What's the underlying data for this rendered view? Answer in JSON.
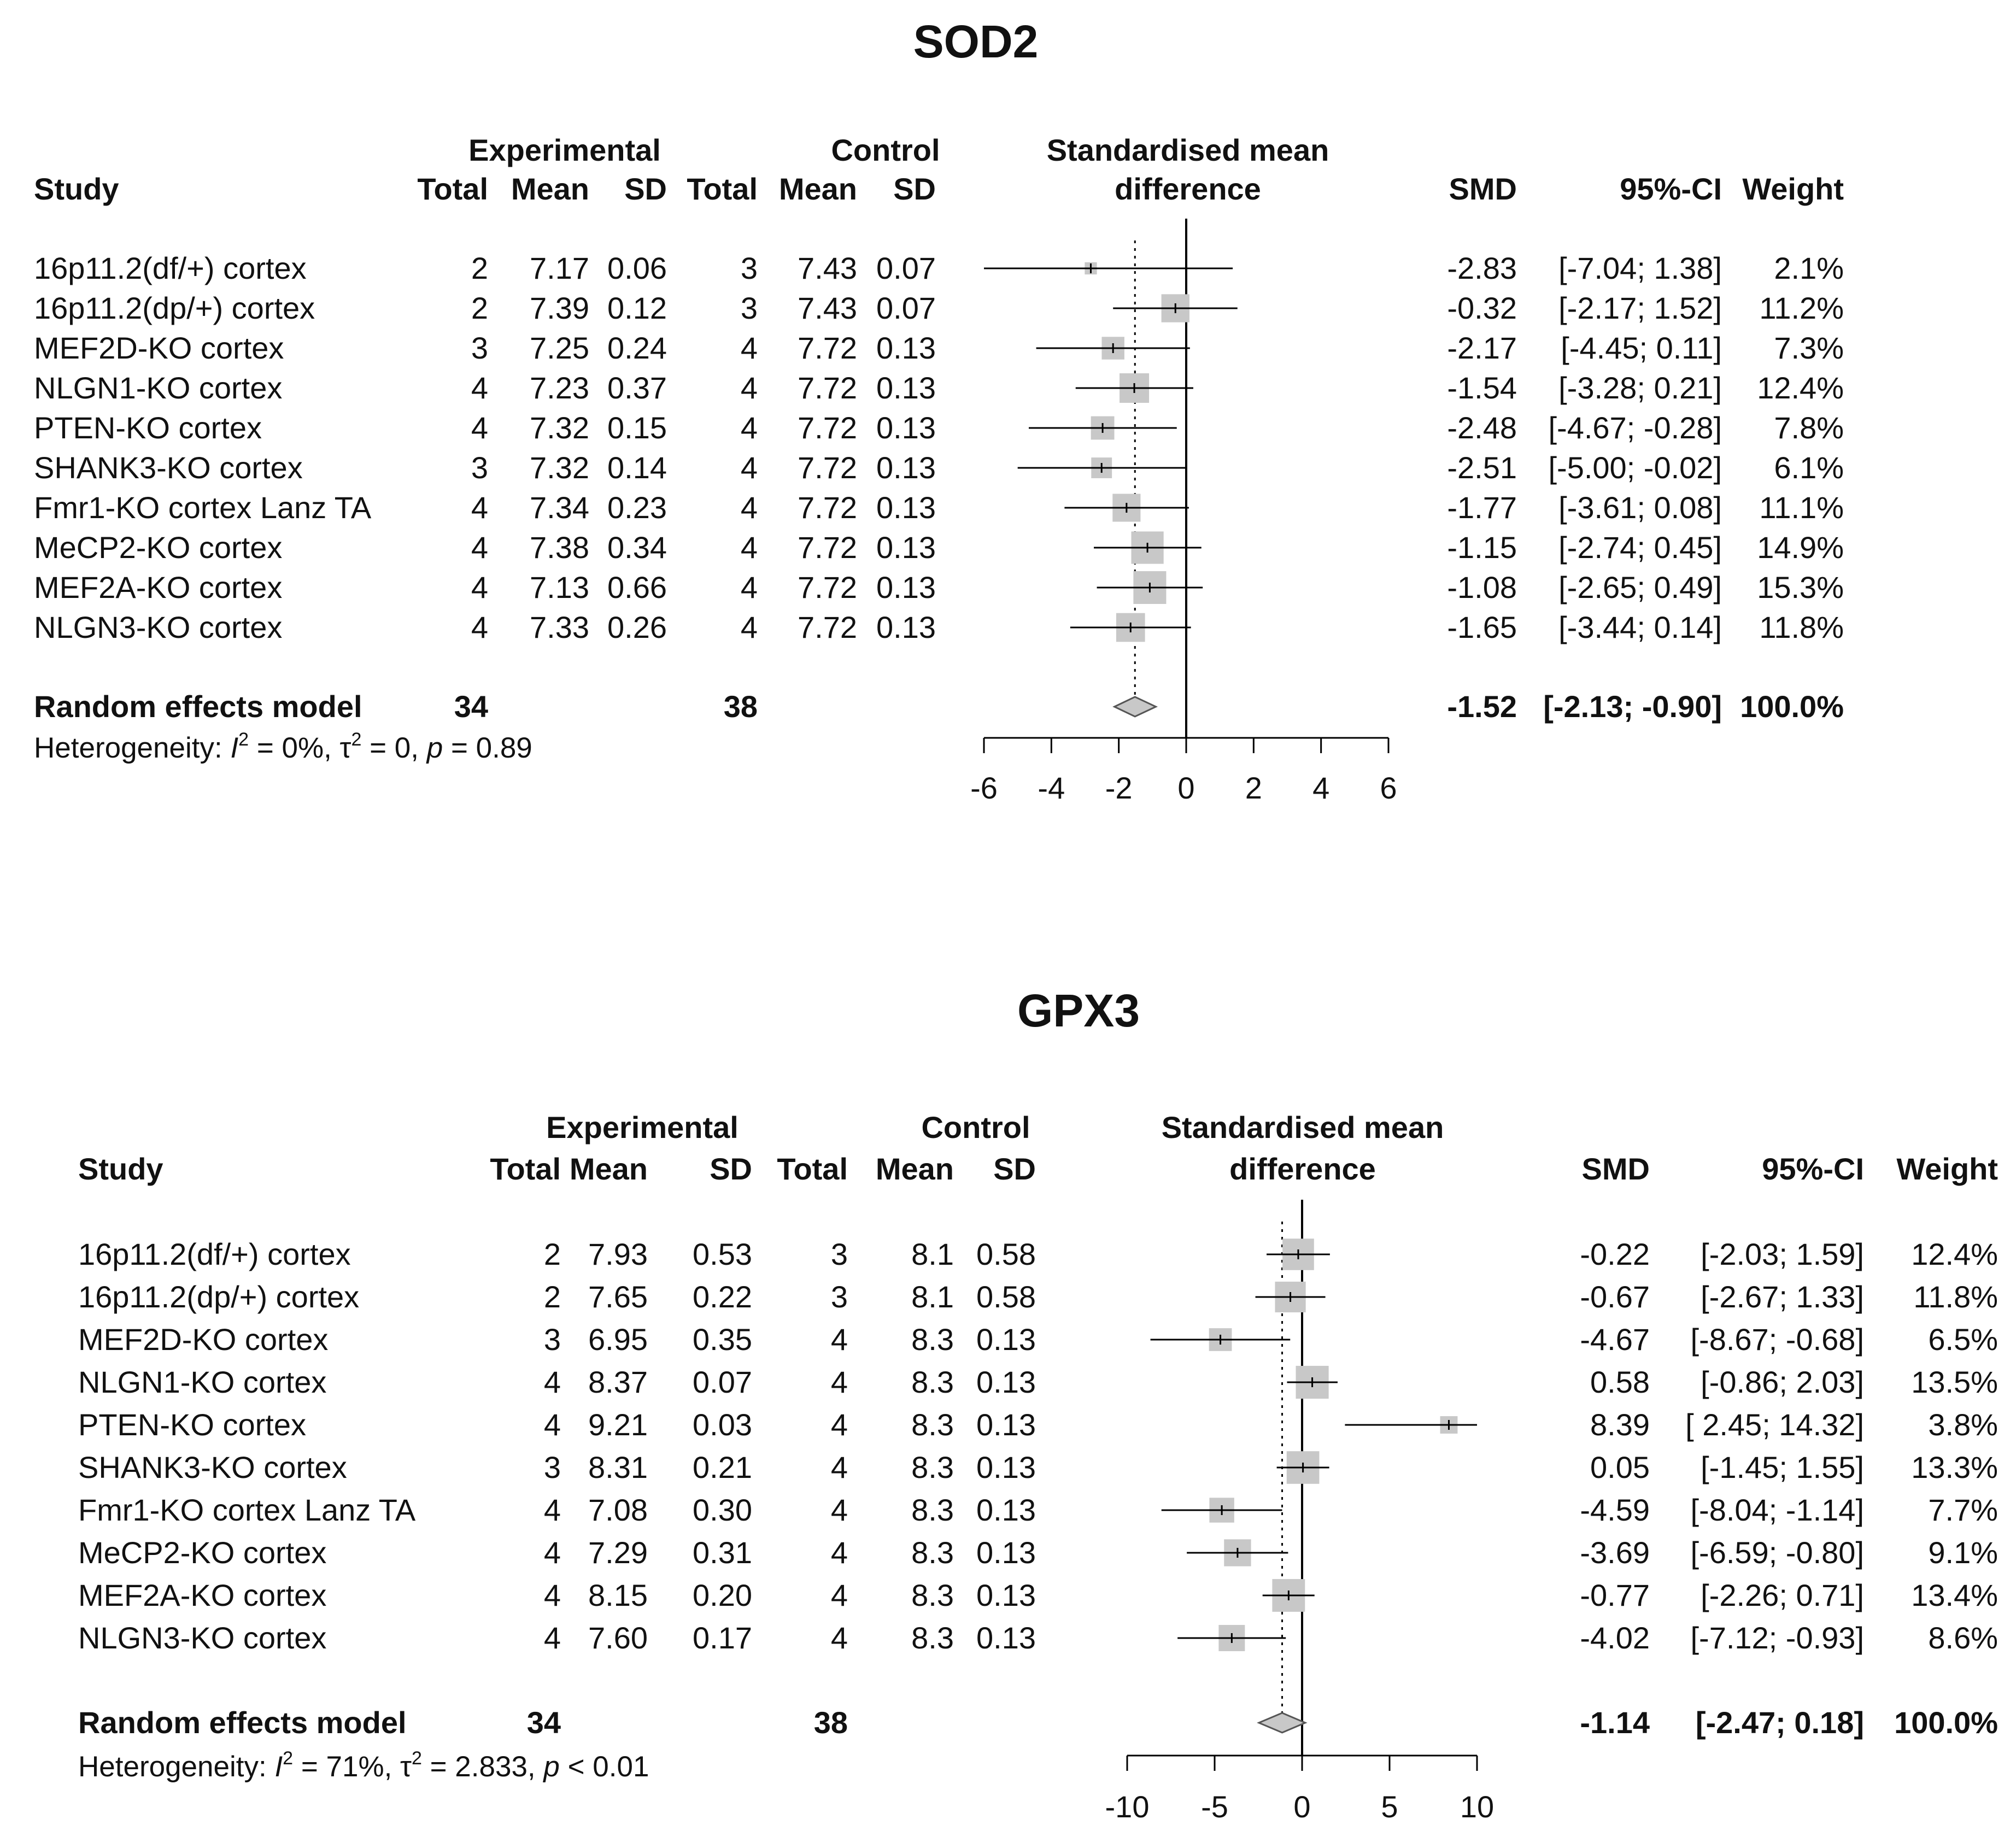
{
  "chart_data": [
    {
      "type": "forest",
      "title": "SOD2",
      "headers": {
        "study": "Study",
        "experimental": "Experimental",
        "control": "Control",
        "total": "Total",
        "mean": "Mean",
        "sd": "SD",
        "effect_line1": "Standardised mean",
        "effect_line2": "difference",
        "smd": "SMD",
        "ci": "95%-CI",
        "weight": "Weight"
      },
      "studies": [
        {
          "name": "16p11.2(df/+) cortex",
          "exp_total": "2",
          "exp_mean": "7.17",
          "exp_sd": "0.06",
          "ctl_total": "3",
          "ctl_mean": "7.43",
          "ctl_sd": "0.07",
          "smd": "-2.83",
          "ci": "[-7.04; 1.38]",
          "weight": "2.1%",
          "smd_value": -2.83,
          "ci_low": -7.04,
          "ci_high": 1.38,
          "weight_value": 2.1
        },
        {
          "name": "16p11.2(dp/+) cortex",
          "exp_total": "2",
          "exp_mean": "7.39",
          "exp_sd": "0.12",
          "ctl_total": "3",
          "ctl_mean": "7.43",
          "ctl_sd": "0.07",
          "smd": "-0.32",
          "ci": "[-2.17; 1.52]",
          "weight": "11.2%",
          "smd_value": -0.32,
          "ci_low": -2.17,
          "ci_high": 1.52,
          "weight_value": 11.2
        },
        {
          "name": "MEF2D-KO cortex",
          "exp_total": "3",
          "exp_mean": "7.25",
          "exp_sd": "0.24",
          "ctl_total": "4",
          "ctl_mean": "7.72",
          "ctl_sd": "0.13",
          "smd": "-2.17",
          "ci": "[-4.45; 0.11]",
          "weight": "7.3%",
          "smd_value": -2.17,
          "ci_low": -4.45,
          "ci_high": 0.11,
          "weight_value": 7.3
        },
        {
          "name": "NLGN1-KO cortex",
          "exp_total": "4",
          "exp_mean": "7.23",
          "exp_sd": "0.37",
          "ctl_total": "4",
          "ctl_mean": "7.72",
          "ctl_sd": "0.13",
          "smd": "-1.54",
          "ci": "[-3.28; 0.21]",
          "weight": "12.4%",
          "smd_value": -1.54,
          "ci_low": -3.28,
          "ci_high": 0.21,
          "weight_value": 12.4
        },
        {
          "name": "PTEN-KO cortex",
          "exp_total": "4",
          "exp_mean": "7.32",
          "exp_sd": "0.15",
          "ctl_total": "4",
          "ctl_mean": "7.72",
          "ctl_sd": "0.13",
          "smd": "-2.48",
          "ci": "[-4.67; -0.28]",
          "weight": "7.8%",
          "smd_value": -2.48,
          "ci_low": -4.67,
          "ci_high": -0.28,
          "weight_value": 7.8
        },
        {
          "name": "SHANK3-KO cortex",
          "exp_total": "3",
          "exp_mean": "7.32",
          "exp_sd": "0.14",
          "ctl_total": "4",
          "ctl_mean": "7.72",
          "ctl_sd": "0.13",
          "smd": "-2.51",
          "ci": "[-5.00; -0.02]",
          "weight": "6.1%",
          "smd_value": -2.51,
          "ci_low": -5.0,
          "ci_high": -0.02,
          "weight_value": 6.1
        },
        {
          "name": "Fmr1-KO cortex Lanz TA",
          "exp_total": "4",
          "exp_mean": "7.34",
          "exp_sd": "0.23",
          "ctl_total": "4",
          "ctl_mean": "7.72",
          "ctl_sd": "0.13",
          "smd": "-1.77",
          "ci": "[-3.61; 0.08]",
          "weight": "11.1%",
          "smd_value": -1.77,
          "ci_low": -3.61,
          "ci_high": 0.08,
          "weight_value": 11.1
        },
        {
          "name": "MeCP2-KO cortex",
          "exp_total": "4",
          "exp_mean": "7.38",
          "exp_sd": "0.34",
          "ctl_total": "4",
          "ctl_mean": "7.72",
          "ctl_sd": "0.13",
          "smd": "-1.15",
          "ci": "[-2.74; 0.45]",
          "weight": "14.9%",
          "smd_value": -1.15,
          "ci_low": -2.74,
          "ci_high": 0.45,
          "weight_value": 14.9
        },
        {
          "name": "MEF2A-KO cortex",
          "exp_total": "4",
          "exp_mean": "7.13",
          "exp_sd": "0.66",
          "ctl_total": "4",
          "ctl_mean": "7.72",
          "ctl_sd": "0.13",
          "smd": "-1.08",
          "ci": "[-2.65; 0.49]",
          "weight": "15.3%",
          "smd_value": -1.08,
          "ci_low": -2.65,
          "ci_high": 0.49,
          "weight_value": 15.3
        },
        {
          "name": "NLGN3-KO cortex",
          "exp_total": "4",
          "exp_mean": "7.33",
          "exp_sd": "0.26",
          "ctl_total": "4",
          "ctl_mean": "7.72",
          "ctl_sd": "0.13",
          "smd": "-1.65",
          "ci": "[-3.44; 0.14]",
          "weight": "11.8%",
          "smd_value": -1.65,
          "ci_low": -3.44,
          "ci_high": 0.14,
          "weight_value": 11.8
        }
      ],
      "summary": {
        "label": "Random effects model",
        "exp_total": "34",
        "ctl_total": "38",
        "smd": "-1.52",
        "ci": "[-2.13; -0.90]",
        "weight": "100.0%",
        "smd_value": -1.52,
        "ci_low": -2.13,
        "ci_high": -0.9
      },
      "heterogeneity": {
        "prefix": "Heterogeneity: ",
        "i2_symbol": "I",
        "sup": "2",
        "i2_value": " = 0%, ",
        "tau_symbol": "τ",
        "tau_value": " = 0, ",
        "p_symbol": "p",
        "p_value": " = 0.89"
      },
      "axis": {
        "range": [
          -6,
          6
        ],
        "ticks": [
          -6,
          -4,
          -2,
          0,
          2,
          4,
          6
        ],
        "tick_labels": [
          "-6",
          "-4",
          "-2",
          "0",
          "2",
          "4",
          "6"
        ]
      }
    },
    {
      "type": "forest",
      "title": "GPX3",
      "headers": {
        "study": "Study",
        "experimental": "Experimental",
        "control": "Control",
        "total": "Total",
        "mean": "Mean",
        "sd": "SD",
        "effect_line1": "Standardised mean",
        "effect_line2": "difference",
        "smd": "SMD",
        "ci": "95%-CI",
        "weight": "Weight"
      },
      "studies": [
        {
          "name": "16p11.2(df/+) cortex",
          "exp_total": "2",
          "exp_mean": "7.93",
          "exp_sd": "0.53",
          "ctl_total": "3",
          "ctl_mean": "8.1",
          "ctl_sd": "0.58",
          "smd": "-0.22",
          "ci": "[-2.03; 1.59]",
          "weight": "12.4%",
          "smd_value": -0.22,
          "ci_low": -2.03,
          "ci_high": 1.59,
          "weight_value": 12.4
        },
        {
          "name": "16p11.2(dp/+) cortex",
          "exp_total": "2",
          "exp_mean": "7.65",
          "exp_sd": "0.22",
          "ctl_total": "3",
          "ctl_mean": "8.1",
          "ctl_sd": "0.58",
          "smd": "-0.67",
          "ci": "[-2.67; 1.33]",
          "weight": "11.8%",
          "smd_value": -0.67,
          "ci_low": -2.67,
          "ci_high": 1.33,
          "weight_value": 11.8
        },
        {
          "name": "MEF2D-KO cortex",
          "exp_total": "3",
          "exp_mean": "6.95",
          "exp_sd": "0.35",
          "ctl_total": "4",
          "ctl_mean": "8.3",
          "ctl_sd": "0.13",
          "smd": "-4.67",
          "ci": "[-8.67; -0.68]",
          "weight": "6.5%",
          "smd_value": -4.67,
          "ci_low": -8.67,
          "ci_high": -0.68,
          "weight_value": 6.5
        },
        {
          "name": "NLGN1-KO cortex",
          "exp_total": "4",
          "exp_mean": "8.37",
          "exp_sd": "0.07",
          "ctl_total": "4",
          "ctl_mean": "8.3",
          "ctl_sd": "0.13",
          "smd": "0.58",
          "ci": "[-0.86; 2.03]",
          "weight": "13.5%",
          "smd_value": 0.58,
          "ci_low": -0.86,
          "ci_high": 2.03,
          "weight_value": 13.5
        },
        {
          "name": "PTEN-KO cortex",
          "exp_total": "4",
          "exp_mean": "9.21",
          "exp_sd": "0.03",
          "ctl_total": "4",
          "ctl_mean": "8.3",
          "ctl_sd": "0.13",
          "smd": "8.39",
          "ci": "[ 2.45; 14.32]",
          "weight": "3.8%",
          "smd_value": 8.39,
          "ci_low": 2.45,
          "ci_high": 14.32,
          "weight_value": 3.8
        },
        {
          "name": "SHANK3-KO cortex",
          "exp_total": "3",
          "exp_mean": "8.31",
          "exp_sd": "0.21",
          "ctl_total": "4",
          "ctl_mean": "8.3",
          "ctl_sd": "0.13",
          "smd": "0.05",
          "ci": "[-1.45; 1.55]",
          "weight": "13.3%",
          "smd_value": 0.05,
          "ci_low": -1.45,
          "ci_high": 1.55,
          "weight_value": 13.3
        },
        {
          "name": "Fmr1-KO cortex Lanz TA",
          "exp_total": "4",
          "exp_mean": "7.08",
          "exp_sd": "0.30",
          "ctl_total": "4",
          "ctl_mean": "8.3",
          "ctl_sd": "0.13",
          "smd": "-4.59",
          "ci": "[-8.04; -1.14]",
          "weight": "7.7%",
          "smd_value": -4.59,
          "ci_low": -8.04,
          "ci_high": -1.14,
          "weight_value": 7.7
        },
        {
          "name": "MeCP2-KO cortex",
          "exp_total": "4",
          "exp_mean": "7.29",
          "exp_sd": "0.31",
          "ctl_total": "4",
          "ctl_mean": "8.3",
          "ctl_sd": "0.13",
          "smd": "-3.69",
          "ci": "[-6.59; -0.80]",
          "weight": "9.1%",
          "smd_value": -3.69,
          "ci_low": -6.59,
          "ci_high": -0.8,
          "weight_value": 9.1
        },
        {
          "name": "MEF2A-KO cortex",
          "exp_total": "4",
          "exp_mean": "8.15",
          "exp_sd": "0.20",
          "ctl_total": "4",
          "ctl_mean": "8.3",
          "ctl_sd": "0.13",
          "smd": "-0.77",
          "ci": "[-2.26; 0.71]",
          "weight": "13.4%",
          "smd_value": -0.77,
          "ci_low": -2.26,
          "ci_high": 0.71,
          "weight_value": 13.4
        },
        {
          "name": "NLGN3-KO cortex",
          "exp_total": "4",
          "exp_mean": "7.60",
          "exp_sd": "0.17",
          "ctl_total": "4",
          "ctl_mean": "8.3",
          "ctl_sd": "0.13",
          "smd": "-4.02",
          "ci": "[-7.12; -0.93]",
          "weight": "8.6%",
          "smd_value": -4.02,
          "ci_low": -7.12,
          "ci_high": -0.93,
          "weight_value": 8.6
        }
      ],
      "summary": {
        "label": "Random effects model",
        "exp_total": "34",
        "ctl_total": "38",
        "smd": "-1.14",
        "ci": "[-2.47; 0.18]",
        "weight": "100.0%",
        "smd_value": -1.14,
        "ci_low": -2.47,
        "ci_high": 0.18
      },
      "heterogeneity": {
        "prefix": "Heterogeneity: ",
        "i2_symbol": "I",
        "sup": "2",
        "i2_value": " = 71%, ",
        "tau_symbol": "τ",
        "tau_value": " = 2.833, ",
        "p_symbol": "p",
        "p_value": " < 0.01"
      },
      "axis": {
        "range": [
          -10,
          10
        ],
        "ticks": [
          -10,
          -5,
          0,
          5,
          10
        ],
        "tick_labels": [
          "-10",
          "-5",
          "0",
          "5",
          "10"
        ]
      }
    }
  ],
  "colors": {
    "text": "#111111",
    "box": "#c8c8c8",
    "line": "#000000",
    "diamond_fill": "#c8c8c8",
    "diamond_stroke": "#555555"
  }
}
